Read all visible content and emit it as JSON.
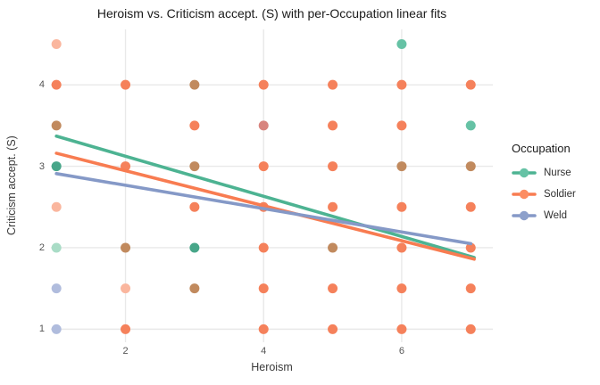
{
  "chart_data": {
    "type": "scatter",
    "title": "Heroism vs. Criticism accept. (S) with per-Occupation linear fits",
    "xlabel": "Heroism",
    "ylabel": "Criticism accept. (S)",
    "xlim": [
      0.92,
      7.32
    ],
    "ylim": [
      0.84,
      4.68
    ],
    "xticks": [
      2,
      4,
      6
    ],
    "yticks": [
      1,
      2,
      3,
      4
    ],
    "grid": true,
    "grid_color": "#e9e9e9",
    "background_color": "#ffffff",
    "point_radius": 5.5,
    "palette": {
      "nurse": "#66c2a5",
      "nurse_dark": "#47a689",
      "nurse_light": "#a9dcc6",
      "soldier": "#f5815b",
      "soldier_light": "#fab69e",
      "weld": "#8da0cb",
      "weld_light": "#b0bcdd",
      "mix_nurse_soldier": "#c18a5e",
      "mix_soldier_weld": "#d8847e"
    },
    "points": [
      [
        1,
        4.5,
        "soldier_light"
      ],
      [
        6,
        4.5,
        "nurse"
      ],
      [
        1,
        4,
        "soldier"
      ],
      [
        2,
        4,
        "soldier"
      ],
      [
        3,
        4,
        "mix_nurse_soldier"
      ],
      [
        4,
        4,
        "soldier"
      ],
      [
        5,
        4,
        "soldier"
      ],
      [
        6,
        4,
        "soldier"
      ],
      [
        7,
        4,
        "soldier"
      ],
      [
        1,
        3.5,
        "mix_nurse_soldier"
      ],
      [
        3,
        3.5,
        "soldier"
      ],
      [
        4,
        3.5,
        "mix_soldier_weld"
      ],
      [
        5,
        3.5,
        "soldier"
      ],
      [
        6,
        3.5,
        "soldier"
      ],
      [
        7,
        3.5,
        "nurse"
      ],
      [
        1,
        3,
        "nurse_dark"
      ],
      [
        2,
        3,
        "soldier"
      ],
      [
        3,
        3,
        "mix_nurse_soldier"
      ],
      [
        4,
        3,
        "soldier"
      ],
      [
        5,
        3,
        "soldier"
      ],
      [
        6,
        3,
        "mix_nurse_soldier"
      ],
      [
        7,
        3,
        "mix_nurse_soldier"
      ],
      [
        1,
        2.5,
        "soldier_light"
      ],
      [
        3,
        2.5,
        "soldier"
      ],
      [
        4,
        2.5,
        "soldier"
      ],
      [
        5,
        2.5,
        "soldier"
      ],
      [
        6,
        2.5,
        "soldier"
      ],
      [
        7,
        2.5,
        "soldier"
      ],
      [
        1,
        2,
        "nurse_light"
      ],
      [
        2,
        2,
        "mix_nurse_soldier"
      ],
      [
        3,
        2,
        "nurse_dark"
      ],
      [
        4,
        2,
        "soldier"
      ],
      [
        5,
        2,
        "mix_nurse_soldier"
      ],
      [
        6,
        2,
        "soldier"
      ],
      [
        7,
        2,
        "soldier"
      ],
      [
        1,
        1.5,
        "weld_light"
      ],
      [
        2,
        1.5,
        "soldier_light"
      ],
      [
        3,
        1.5,
        "mix_nurse_soldier"
      ],
      [
        4,
        1.5,
        "soldier"
      ],
      [
        5,
        1.5,
        "soldier"
      ],
      [
        6,
        1.5,
        "soldier"
      ],
      [
        7,
        1.5,
        "soldier"
      ],
      [
        1,
        1,
        "weld_light"
      ],
      [
        2,
        1,
        "soldier"
      ],
      [
        4,
        1,
        "soldier"
      ],
      [
        5,
        1,
        "soldier"
      ],
      [
        6,
        1,
        "soldier"
      ],
      [
        7,
        1,
        "soldier"
      ]
    ],
    "fit_lines": [
      {
        "name": "Nurse",
        "color": "#4db392",
        "x": [
          1,
          7.05
        ],
        "y": [
          3.37,
          1.88
        ]
      },
      {
        "name": "Soldier",
        "color": "#f87c51",
        "x": [
          1,
          7.05
        ],
        "y": [
          3.16,
          1.86
        ]
      },
      {
        "name": "Weld",
        "color": "#8599c7",
        "x": [
          1,
          7.0
        ],
        "y": [
          2.91,
          2.05
        ]
      }
    ],
    "legend": {
      "title": "Occupation",
      "position": "right",
      "entries": [
        {
          "label": "Nurse",
          "dot_color": "#66c2a5",
          "line_color": "#4db392"
        },
        {
          "label": "Soldier",
          "dot_color": "#fc8d62",
          "line_color": "#f87c51"
        },
        {
          "label": "Weld",
          "dot_color": "#8da0cb",
          "line_color": "#8599c7"
        }
      ]
    }
  }
}
